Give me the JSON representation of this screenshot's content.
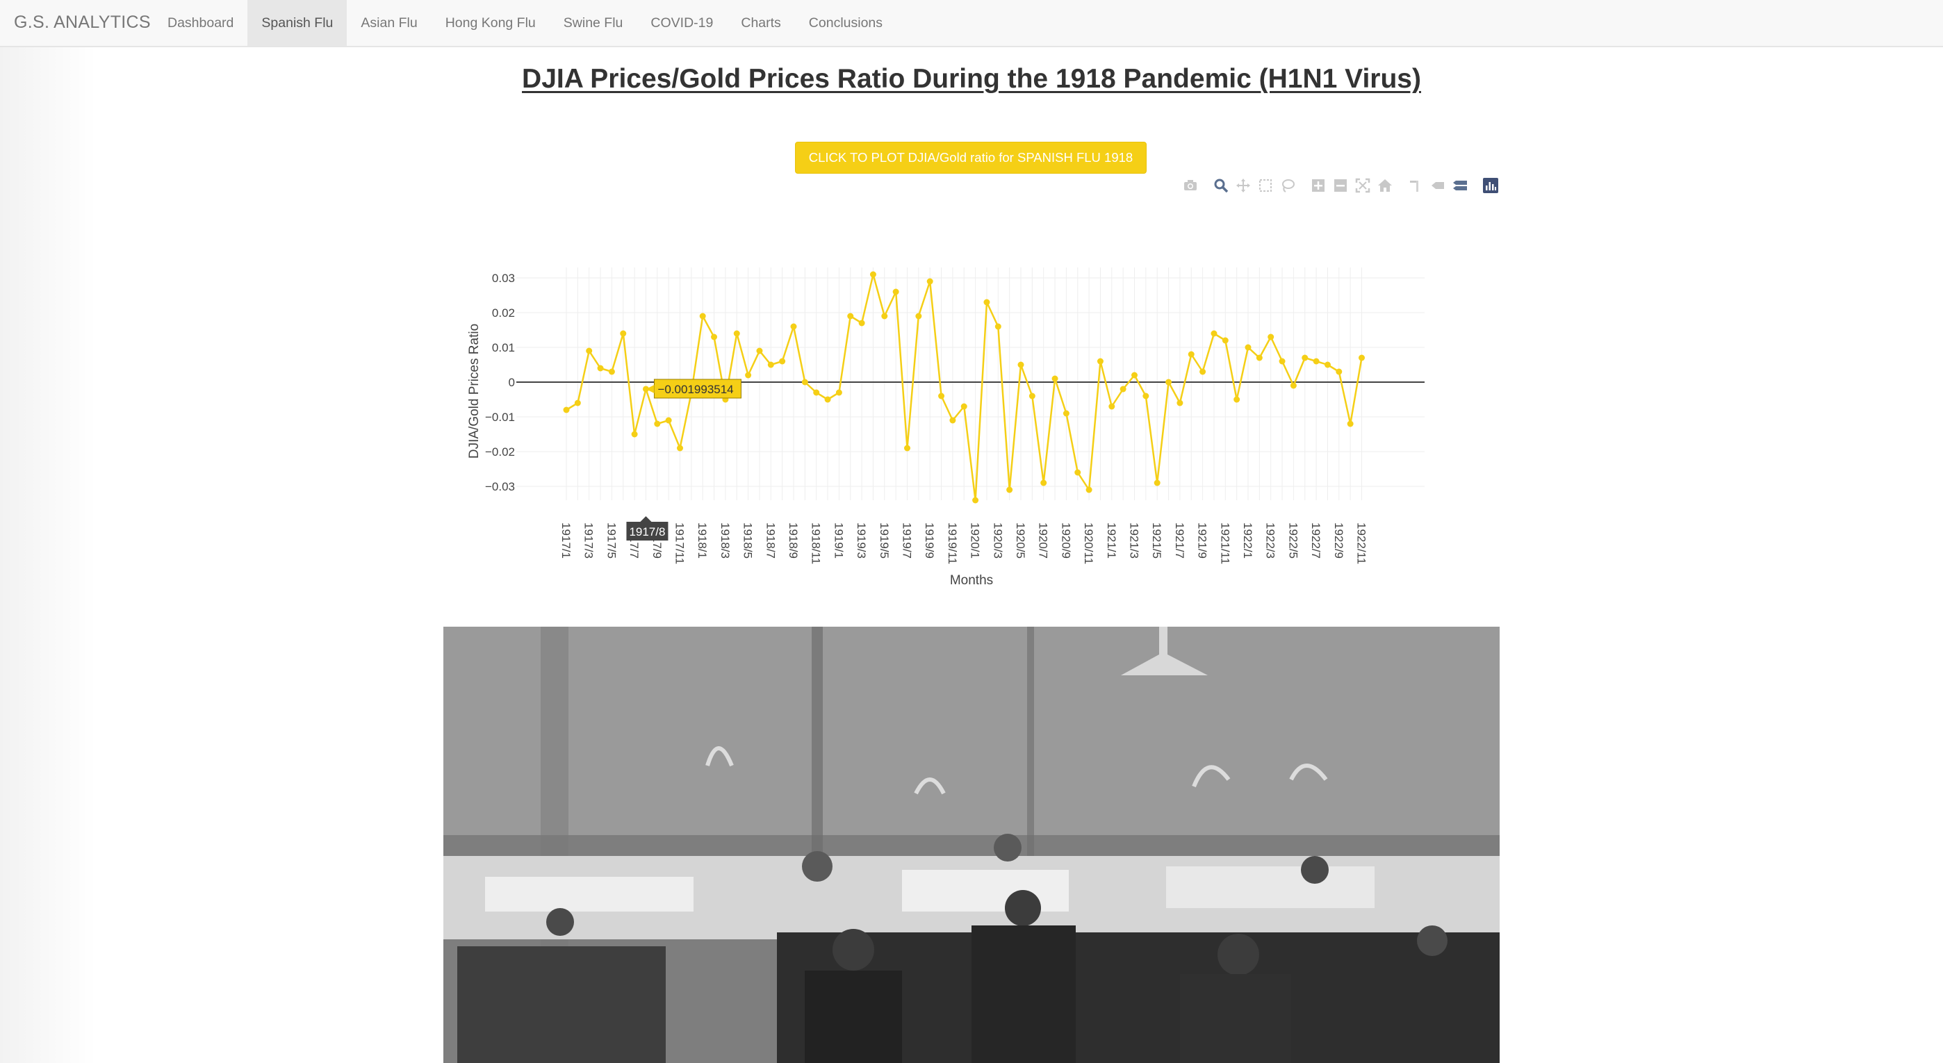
{
  "nav": {
    "brand": "G.S. ANALYTICS",
    "items": [
      {
        "label": "Dashboard",
        "active": false
      },
      {
        "label": "Spanish Flu",
        "active": true
      },
      {
        "label": "Asian Flu",
        "active": false
      },
      {
        "label": "Hong Kong Flu",
        "active": false
      },
      {
        "label": "Swine Flu",
        "active": false
      },
      {
        "label": "COVID-19",
        "active": false
      },
      {
        "label": "Charts",
        "active": false
      },
      {
        "label": "Conclusions",
        "active": false
      }
    ]
  },
  "page": {
    "title": "DJIA Prices/Gold Prices Ratio During the 1918 Pandemic (H1N1 Virus)",
    "plot_button": "CLICK TO PLOT DJIA/Gold ratio for SPANISH FLU 1918"
  },
  "modebar": {
    "icons": [
      "camera-icon",
      "zoom-icon",
      "pan-icon",
      "box-select-icon",
      "lasso-select-icon",
      "zoom-in-icon",
      "zoom-out-icon",
      "autoscale-icon",
      "reset-axes-icon",
      "spike-lines-icon",
      "hover-closest-icon",
      "hover-compare-icon",
      "plotly-logo-icon"
    ]
  },
  "colors": {
    "series": "#f5cf16",
    "accent": "#f5cf16"
  },
  "chart_data": {
    "type": "line",
    "title": "",
    "xlabel": "Months",
    "ylabel": "DJIA/Gold Prices Ratio",
    "ylim": [
      -0.034,
      0.033
    ],
    "yticks": [
      0.03,
      0.02,
      0.01,
      0,
      -0.01,
      -0.02,
      -0.03
    ],
    "ytick_labels": [
      "0.03",
      "0.02",
      "0.01",
      "0",
      "−0.01",
      "−0.02",
      "−0.03"
    ],
    "xtick_labels": [
      "1917/1",
      "1917/3",
      "1917/5",
      "1917/7",
      "1917/9",
      "1917/11",
      "1918/1",
      "1918/3",
      "1918/5",
      "1918/7",
      "1918/9",
      "1918/11",
      "1919/1",
      "1919/3",
      "1919/5",
      "1919/7",
      "1919/9",
      "1919/11",
      "1920/1",
      "1920/3",
      "1920/5",
      "1920/7",
      "1920/9",
      "1920/11",
      "1921/1",
      "1921/3",
      "1921/5",
      "1921/7",
      "1921/9",
      "1921/11",
      "1922/1",
      "1922/3",
      "1922/5",
      "1922/7",
      "1922/9",
      "1922/11"
    ],
    "grid": true,
    "legend": "none",
    "series": [
      {
        "values": [
          -0.008,
          -0.006,
          0.009,
          0.004,
          0.003,
          0.014,
          -0.015,
          -0.001993514,
          -0.012,
          -0.011,
          -0.019,
          -0.003,
          0.019,
          0.013,
          -0.005,
          0.014,
          0.002,
          0.009,
          0.005,
          0.006,
          0.016,
          0.0,
          -0.003,
          -0.005,
          -0.003,
          0.019,
          0.017,
          0.031,
          0.019,
          0.026,
          -0.019,
          0.019,
          0.029,
          -0.004,
          -0.011,
          -0.007,
          -0.034,
          0.023,
          0.016,
          -0.031,
          0.005,
          -0.004,
          -0.029,
          0.001,
          -0.009,
          -0.026,
          -0.031,
          0.006,
          -0.007,
          -0.002,
          0.002,
          -0.004,
          -0.029,
          0.0,
          -0.006,
          0.008,
          0.003,
          0.014,
          0.012,
          -0.005,
          0.01,
          0.007,
          0.013,
          0.006,
          -0.001,
          0.007,
          0.006,
          0.005,
          0.003,
          -0.012,
          0.007
        ]
      }
    ],
    "hover": {
      "x_label": "1917/8",
      "value_label": "−0.001993514"
    }
  }
}
